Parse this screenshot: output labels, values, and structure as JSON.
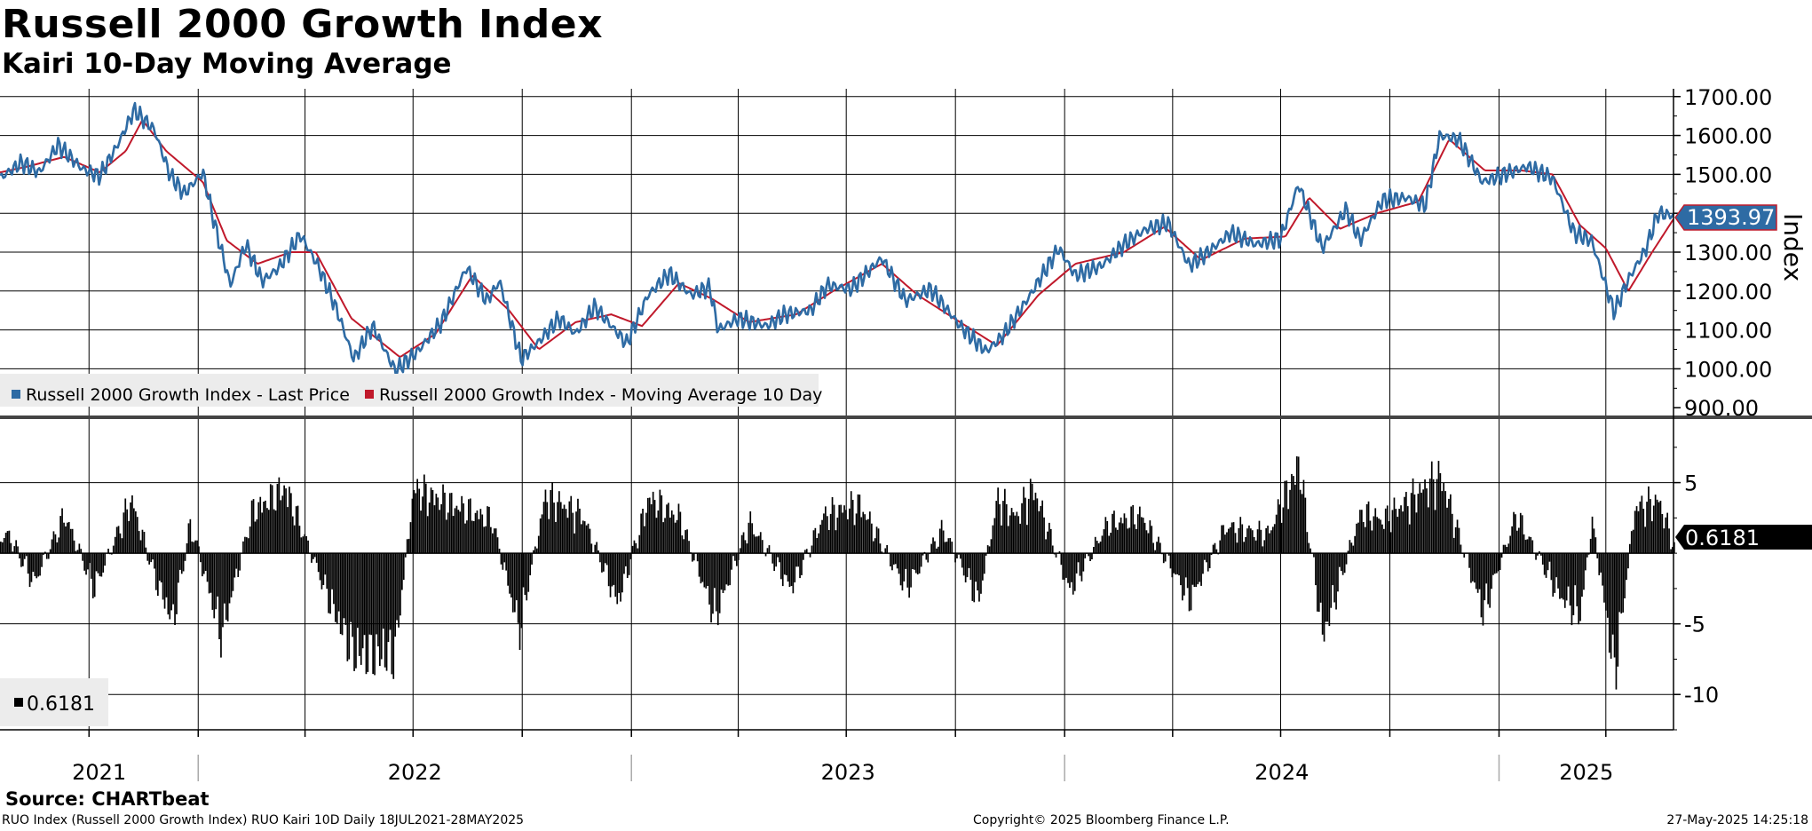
{
  "title": "Russell 2000 Growth Index",
  "subtitle": "Kairi 10-Day Moving Average",
  "source": "Source: CHARTbeat",
  "footer": {
    "left": "RUO Index (Russell 2000 Growth Index) RUO Kairi 10D  Daily 18JUL2021-28MAY2025",
    "center": "Copyright© 2025 Bloomberg Finance L.P.",
    "right": "27-May-2025 14:25:18"
  },
  "colors": {
    "price": "#2E6BA4",
    "moving_average": "#C0192B",
    "kairi": "#000000",
    "price_tag": "#2E6BA4"
  },
  "chart_data": [
    {
      "type": "line",
      "axis_label": "Index",
      "ylim": [
        880,
        1720
      ],
      "y_ticks": [
        "1700.00",
        "1600.00",
        "1500.00",
        "1400.00",
        "1300.00",
        "1200.00",
        "1100.00",
        "1000.00",
        "900.00"
      ],
      "y_tick_values": [
        1700,
        1600,
        1500,
        1400,
        1300,
        1200,
        1100,
        1000,
        900
      ],
      "x_range": [
        "2021-07-18",
        "2025-05-28"
      ],
      "last_price_label": "1393.97",
      "legend": {
        "placement": "bottom-left",
        "entries": [
          "Russell 2000 Growth Index - Last Price",
          "Russell 2000 Growth Index - Moving Average 10 Day"
        ]
      },
      "series": [
        {
          "name": "Russell 2000 Growth Index - Last Price",
          "points": [
            [
              "2021-07-18",
              1490
            ],
            [
              "2021-08-05",
              1530
            ],
            [
              "2021-08-20",
              1505
            ],
            [
              "2021-09-05",
              1575
            ],
            [
              "2021-09-25",
              1515
            ],
            [
              "2021-10-10",
              1495
            ],
            [
              "2021-10-25",
              1575
            ],
            [
              "2021-11-08",
              1665
            ],
            [
              "2021-11-25",
              1615
            ],
            [
              "2021-12-08",
              1500
            ],
            [
              "2021-12-20",
              1450
            ],
            [
              "2022-01-05",
              1505
            ],
            [
              "2022-01-15",
              1370
            ],
            [
              "2022-01-28",
              1215
            ],
            [
              "2022-02-10",
              1320
            ],
            [
              "2022-02-24",
              1225
            ],
            [
              "2022-03-10",
              1260
            ],
            [
              "2022-03-28",
              1345
            ],
            [
              "2022-04-12",
              1265
            ],
            [
              "2022-04-28",
              1150
            ],
            [
              "2022-05-12",
              1025
            ],
            [
              "2022-05-28",
              1110
            ],
            [
              "2022-06-16",
              995
            ],
            [
              "2022-07-05",
              1045
            ],
            [
              "2022-07-25",
              1120
            ],
            [
              "2022-08-15",
              1260
            ],
            [
              "2022-09-01",
              1175
            ],
            [
              "2022-09-12",
              1225
            ],
            [
              "2022-09-30",
              1025
            ],
            [
              "2022-10-15",
              1070
            ],
            [
              "2022-11-01",
              1130
            ],
            [
              "2022-11-15",
              1090
            ],
            [
              "2022-12-01",
              1160
            ],
            [
              "2022-12-28",
              1065
            ],
            [
              "2023-01-15",
              1190
            ],
            [
              "2023-02-02",
              1245
            ],
            [
              "2023-02-20",
              1190
            ],
            [
              "2023-03-08",
              1210
            ],
            [
              "2023-03-15",
              1100
            ],
            [
              "2023-04-01",
              1130
            ],
            [
              "2023-04-25",
              1110
            ],
            [
              "2023-05-10",
              1140
            ],
            [
              "2023-06-01",
              1150
            ],
            [
              "2023-06-15",
              1215
            ],
            [
              "2023-07-05",
              1205
            ],
            [
              "2023-07-31",
              1285
            ],
            [
              "2023-08-20",
              1175
            ],
            [
              "2023-09-10",
              1205
            ],
            [
              "2023-10-05",
              1110
            ],
            [
              "2023-10-27",
              1045
            ],
            [
              "2023-11-10",
              1085
            ],
            [
              "2023-12-01",
              1180
            ],
            [
              "2023-12-27",
              1310
            ],
            [
              "2024-01-10",
              1240
            ],
            [
              "2024-02-01",
              1265
            ],
            [
              "2024-02-20",
              1320
            ],
            [
              "2024-03-10",
              1360
            ],
            [
              "2024-03-28",
              1375
            ],
            [
              "2024-04-15",
              1265
            ],
            [
              "2024-05-01",
              1300
            ],
            [
              "2024-05-20",
              1350
            ],
            [
              "2024-06-10",
              1320
            ],
            [
              "2024-07-01",
              1335
            ],
            [
              "2024-07-16",
              1475
            ],
            [
              "2024-08-05",
              1310
            ],
            [
              "2024-08-25",
              1410
            ],
            [
              "2024-09-06",
              1330
            ],
            [
              "2024-09-25",
              1435
            ],
            [
              "2024-10-15",
              1440
            ],
            [
              "2024-10-31",
              1420
            ],
            [
              "2024-11-12",
              1600
            ],
            [
              "2024-11-28",
              1590
            ],
            [
              "2024-12-18",
              1480
            ],
            [
              "2025-01-05",
              1500
            ],
            [
              "2025-01-25",
              1520
            ],
            [
              "2025-02-15",
              1490
            ],
            [
              "2025-03-05",
              1350
            ],
            [
              "2025-03-20",
              1330
            ],
            [
              "2025-04-08",
              1145
            ],
            [
              "2025-04-20",
              1230
            ],
            [
              "2025-05-05",
              1310
            ],
            [
              "2025-05-15",
              1400
            ],
            [
              "2025-05-28",
              1394
            ]
          ]
        },
        {
          "name": "Russell 2000 Growth Index - Moving Average 10 Day",
          "points": [
            [
              "2021-07-18",
              1505
            ],
            [
              "2021-08-10",
              1520
            ],
            [
              "2021-09-10",
              1545
            ],
            [
              "2021-10-10",
              1505
            ],
            [
              "2021-11-01",
              1560
            ],
            [
              "2021-11-15",
              1640
            ],
            [
              "2021-12-05",
              1560
            ],
            [
              "2022-01-05",
              1480
            ],
            [
              "2022-01-25",
              1330
            ],
            [
              "2022-02-20",
              1270
            ],
            [
              "2022-03-20",
              1300
            ],
            [
              "2022-04-10",
              1300
            ],
            [
              "2022-05-10",
              1130
            ],
            [
              "2022-06-20",
              1030
            ],
            [
              "2022-07-20",
              1090
            ],
            [
              "2022-08-20",
              1240
            ],
            [
              "2022-09-20",
              1150
            ],
            [
              "2022-10-15",
              1050
            ],
            [
              "2022-11-15",
              1120
            ],
            [
              "2022-12-15",
              1140
            ],
            [
              "2023-01-10",
              1110
            ],
            [
              "2023-02-10",
              1220
            ],
            [
              "2023-03-10",
              1180
            ],
            [
              "2023-04-10",
              1120
            ],
            [
              "2023-05-20",
              1140
            ],
            [
              "2023-06-20",
              1200
            ],
            [
              "2023-07-31",
              1270
            ],
            [
              "2023-08-30",
              1190
            ],
            [
              "2023-10-10",
              1110
            ],
            [
              "2023-11-05",
              1060
            ],
            [
              "2023-12-10",
              1190
            ],
            [
              "2024-01-10",
              1270
            ],
            [
              "2024-02-20",
              1300
            ],
            [
              "2024-03-25",
              1365
            ],
            [
              "2024-04-25",
              1280
            ],
            [
              "2024-06-01",
              1335
            ],
            [
              "2024-07-05",
              1340
            ],
            [
              "2024-07-25",
              1440
            ],
            [
              "2024-08-20",
              1360
            ],
            [
              "2024-09-20",
              1400
            ],
            [
              "2024-10-25",
              1430
            ],
            [
              "2024-11-20",
              1590
            ],
            [
              "2024-12-20",
              1510
            ],
            [
              "2025-01-20",
              1510
            ],
            [
              "2025-02-15",
              1500
            ],
            [
              "2025-03-10",
              1370
            ],
            [
              "2025-04-01",
              1310
            ],
            [
              "2025-04-20",
              1200
            ],
            [
              "2025-05-10",
              1300
            ],
            [
              "2025-05-28",
              1385
            ]
          ]
        }
      ]
    },
    {
      "type": "bar",
      "ylim": [
        -12.5,
        9.5
      ],
      "y_ticks": [
        "5",
        "-5",
        "-10"
      ],
      "y_tick_values": [
        5,
        -5,
        -10
      ],
      "last_value_label": "0.6181",
      "legend": {
        "placement": "bottom-left",
        "entries": [
          "0.6181"
        ]
      },
      "x_labels": [
        "2021",
        "2022",
        "2023",
        "2024",
        "2025"
      ],
      "series": [
        {
          "name": "0.6181",
          "points": [
            [
              "2021-07-25",
              1.5
            ],
            [
              "2021-08-15",
              -2.5
            ],
            [
              "2021-09-10",
              3.2
            ],
            [
              "2021-10-05",
              -3.0
            ],
            [
              "2021-11-05",
              4.5
            ],
            [
              "2021-11-25",
              -2.0
            ],
            [
              "2021-12-10",
              -5.8
            ],
            [
              "2021-12-25",
              2.5
            ],
            [
              "2022-01-20",
              -7.0
            ],
            [
              "2022-02-15",
              3.5
            ],
            [
              "2022-03-15",
              5.5
            ],
            [
              "2022-04-25",
              -5.0
            ],
            [
              "2022-05-12",
              -8.5
            ],
            [
              "2022-06-15",
              -8.6
            ],
            [
              "2022-07-01",
              5.4
            ],
            [
              "2022-08-10",
              3.8
            ],
            [
              "2022-09-05",
              2.8
            ],
            [
              "2022-09-28",
              -6.5
            ],
            [
              "2022-10-20",
              4.8
            ],
            [
              "2022-11-20",
              3.2
            ],
            [
              "2022-12-20",
              -4.2
            ],
            [
              "2023-01-15",
              4.6
            ],
            [
              "2023-02-10",
              3.0
            ],
            [
              "2023-03-12",
              -5.4
            ],
            [
              "2023-04-10",
              2.6
            ],
            [
              "2023-05-15",
              -3.0
            ],
            [
              "2023-06-12",
              3.2
            ],
            [
              "2023-07-12",
              4.1
            ],
            [
              "2023-08-20",
              -3.0
            ],
            [
              "2023-09-20",
              2.0
            ],
            [
              "2023-10-20",
              -4.0
            ],
            [
              "2023-11-05",
              4.6
            ],
            [
              "2023-11-20",
              3.0
            ],
            [
              "2023-12-05",
              5.5
            ],
            [
              "2024-01-05",
              -3.2
            ],
            [
              "2024-02-05",
              2.4
            ],
            [
              "2024-03-05",
              3.2
            ],
            [
              "2024-04-15",
              -4.0
            ],
            [
              "2024-05-15",
              2.2
            ],
            [
              "2024-06-20",
              1.6
            ],
            [
              "2024-07-16",
              7.5
            ],
            [
              "2024-08-05",
              -7.0
            ],
            [
              "2024-09-06",
              3.4
            ],
            [
              "2024-09-25",
              2.8
            ],
            [
              "2024-11-12",
              6.5
            ],
            [
              "2024-12-18",
              -5.0
            ],
            [
              "2025-01-15",
              3.2
            ],
            [
              "2025-02-20",
              -3.5
            ],
            [
              "2025-03-10",
              -5.2
            ],
            [
              "2025-03-20",
              2.8
            ],
            [
              "2025-04-08",
              -10.2
            ],
            [
              "2025-04-25",
              3.8
            ],
            [
              "2025-05-15",
              4.4
            ],
            [
              "2025-05-28",
              0.62
            ]
          ]
        }
      ]
    }
  ]
}
